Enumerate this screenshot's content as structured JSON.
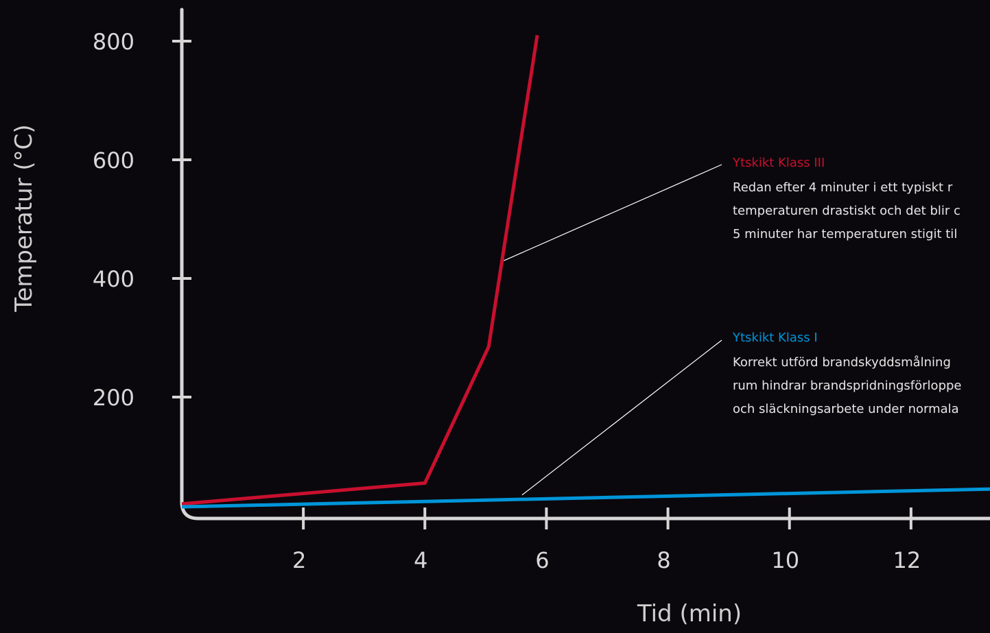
{
  "chart_data": {
    "type": "line",
    "xlabel": "Tid (min)",
    "ylabel": "Temperatur (°C)",
    "xlim": [
      0,
      13.3
    ],
    "ylim": [
      0,
      840
    ],
    "x_ticks": [
      2,
      4,
      6,
      8,
      10,
      12
    ],
    "y_ticks": [
      200,
      400,
      600,
      800
    ],
    "grid": false,
    "series": [
      {
        "name": "Ytskikt Klass III",
        "color": "#c8102e",
        "x": [
          0,
          4,
          5.05,
          5.3,
          5.85
        ],
        "y": [
          20,
          55,
          285,
          450,
          810
        ]
      },
      {
        "name": "Ytskikt Klass I",
        "color": "#0095d9",
        "x": [
          0,
          13.3
        ],
        "y": [
          15,
          45
        ]
      }
    ],
    "annotations": [
      {
        "series": "Ytskikt Klass III",
        "title": "Ytskikt Klass III",
        "color": "#c8102e",
        "anchor": [
          5.3,
          430
        ],
        "lines": [
          "Redan efter 4 minuter i ett typiskt r",
          "temperaturen drastiskt och det blir c",
          "5 minuter har temperaturen stigit til"
        ]
      },
      {
        "series": "Ytskikt Klass I",
        "title": "Ytskikt Klass I",
        "color": "#0095d9",
        "anchor": [
          5.6,
          35
        ],
        "lines": [
          "Korrekt utförd brandskyddsmålning",
          "rum hindrar brandspridningsförloppe",
          "och släckningsarbete under normala"
        ]
      }
    ]
  }
}
